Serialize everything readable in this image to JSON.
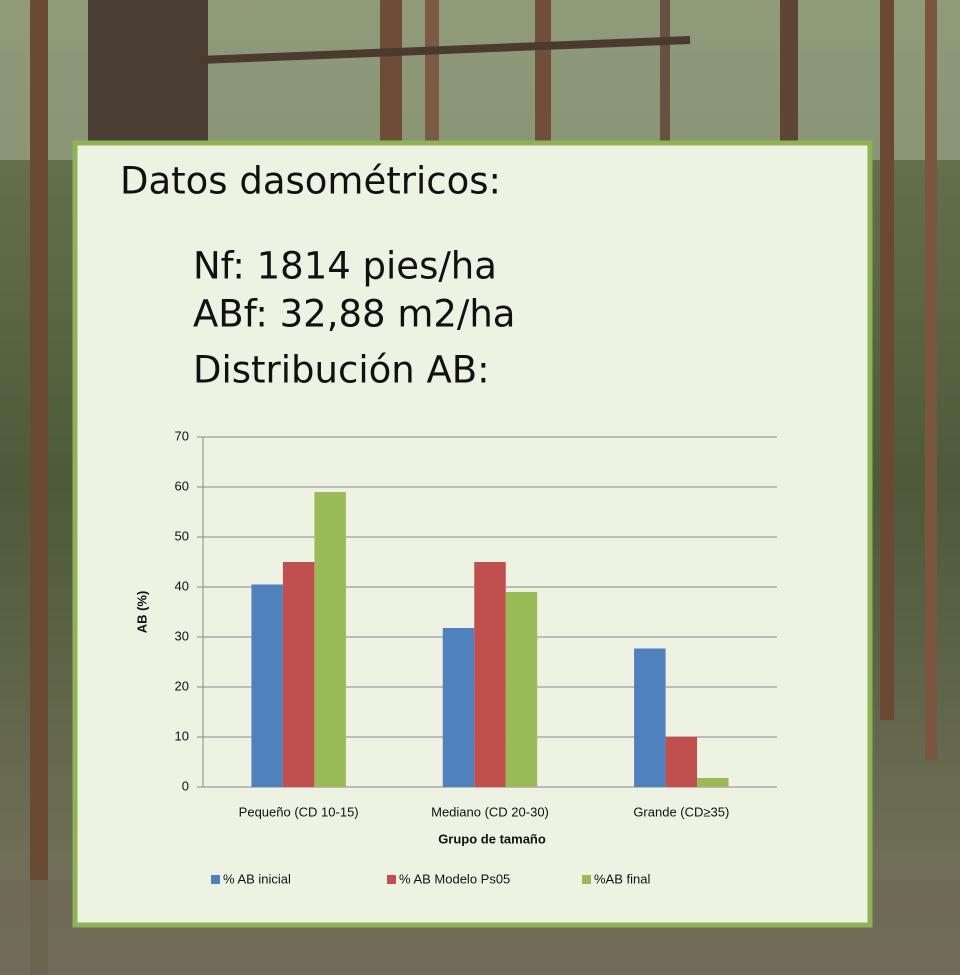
{
  "panel": {
    "heading": "Datos dasométricos:",
    "lines": [
      "Nf: 1814 pies/ha",
      "ABf: 32,88 m2/ha",
      "Distribución AB:"
    ]
  },
  "chart_data": {
    "type": "bar",
    "x_label": "Grupo de tamaño",
    "y_label": "AB (%)",
    "categories": [
      "Pequeño (CD 10-15)",
      "Mediano (CD 20-30)",
      "Grande (CD≥35)"
    ],
    "series": [
      {
        "name": "% AB inicial",
        "color": "#4f81bd",
        "values": [
          40.5,
          31.8,
          27.7
        ]
      },
      {
        "name": "% AB Modelo Ps05",
        "color": "#c0504d",
        "values": [
          45,
          45,
          10
        ]
      },
      {
        "name": "%AB final",
        "color": "#9bbb59",
        "values": [
          59,
          39,
          1.8
        ]
      }
    ],
    "ylim": [
      0,
      70
    ],
    "yticks": [
      0,
      10,
      20,
      30,
      40,
      50,
      60,
      70
    ],
    "grid": true,
    "legend": "bottom"
  }
}
